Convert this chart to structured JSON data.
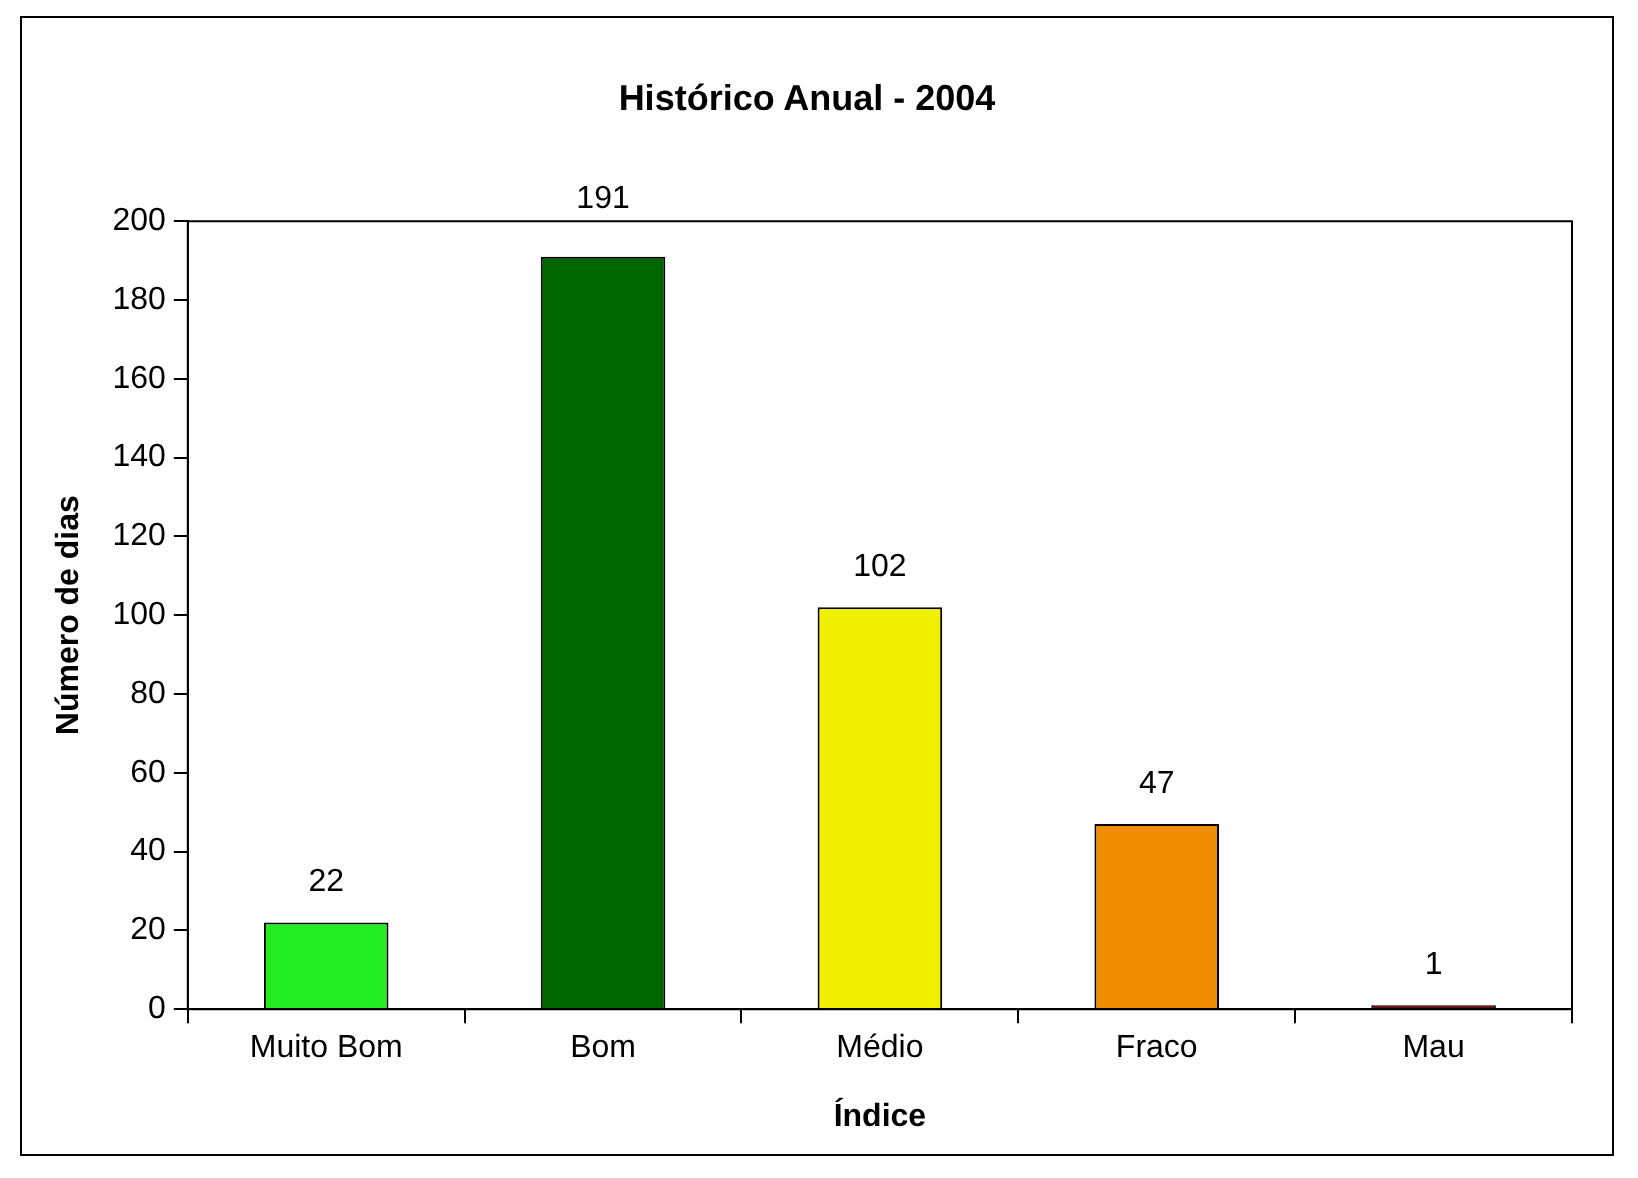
{
  "chart_data": {
    "type": "bar",
    "title": "Histórico Anual - 2004",
    "xlabel": "Índice",
    "ylabel": "Número de dias",
    "categories": [
      "Muito Bom",
      "Bom",
      "Médio",
      "Fraco",
      "Mau"
    ],
    "values": [
      22,
      191,
      102,
      47,
      1
    ],
    "colors": [
      "#22ee22",
      "#006600",
      "#f0f000",
      "#f08c00",
      "#800000"
    ],
    "ylim": [
      0,
      200
    ],
    "yticks": [
      0,
      20,
      40,
      60,
      80,
      100,
      120,
      140,
      160,
      180,
      200
    ],
    "grid": false,
    "legend": false,
    "data_labels": true
  }
}
